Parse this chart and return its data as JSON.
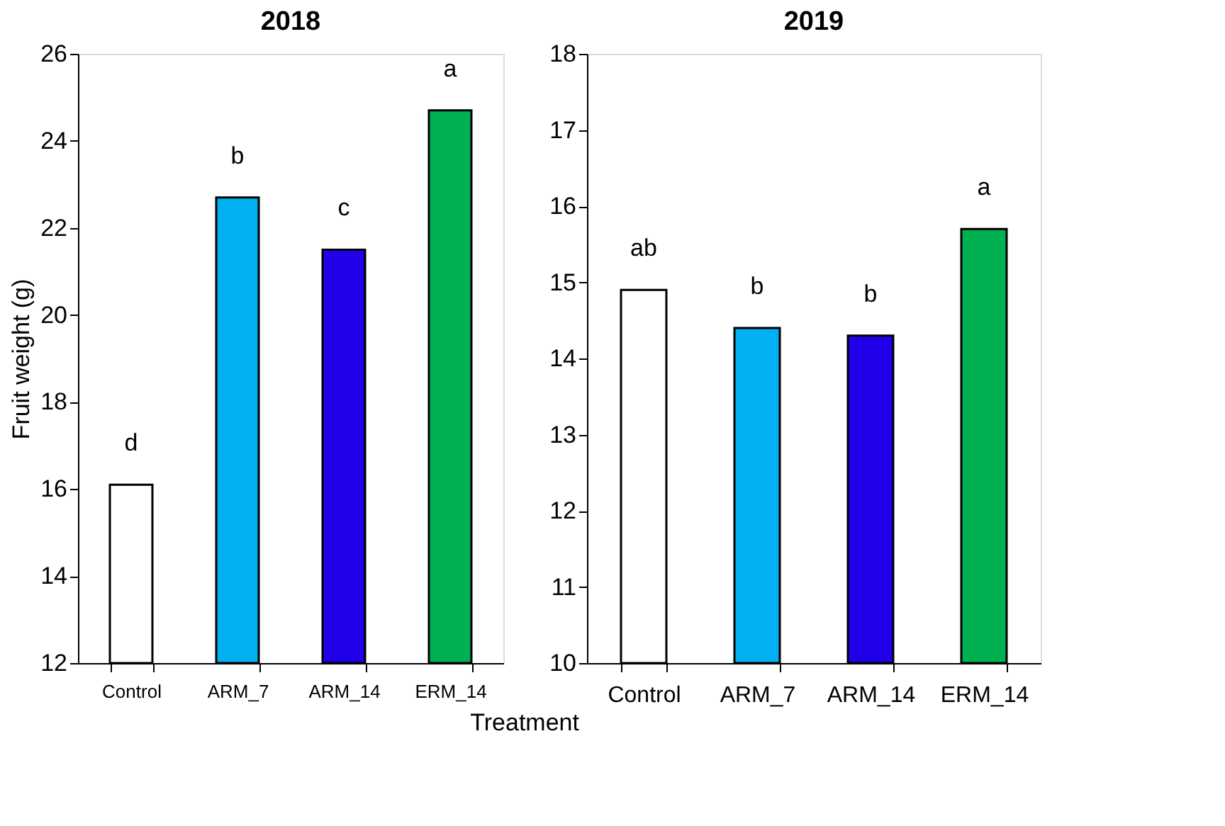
{
  "chart_data": [
    {
      "type": "bar",
      "title": "2018",
      "ylabel": "Fruit weight (g)",
      "categories": [
        "Control",
        "ARM_7",
        "ARM_14",
        "ERM_14"
      ],
      "values": [
        16.1,
        22.7,
        21.5,
        24.7
      ],
      "colors": [
        "#ffffff",
        "#00b0f0",
        "#2000e8",
        "#00b050"
      ],
      "ylim": [
        12,
        26
      ],
      "yticks": [
        12,
        14,
        16,
        18,
        20,
        22,
        24,
        26
      ],
      "annotations": [
        {
          "text": "d",
          "x": "Control",
          "y": 16.1
        },
        {
          "text": "b",
          "x": "ARM_7",
          "y": 22.7
        },
        {
          "text": "c",
          "x": "ARM_14",
          "y": 21.5
        },
        {
          "text": "a",
          "x": "ERM_14",
          "y": 24.7
        }
      ]
    },
    {
      "type": "bar",
      "title": "2019",
      "xlabel": "Treatment",
      "categories": [
        "Control",
        "ARM_7",
        "ARM_14",
        "ERM_14"
      ],
      "values": [
        14.9,
        14.4,
        14.3,
        15.7
      ],
      "colors": [
        "#ffffff",
        "#00b0f0",
        "#2000e8",
        "#00b050"
      ],
      "ylim": [
        10,
        18
      ],
      "yticks": [
        10,
        11,
        12,
        13,
        14,
        15,
        16,
        17,
        18
      ],
      "annotations": [
        {
          "text": "ab",
          "x": "Control",
          "y": 14.9
        },
        {
          "text": "b",
          "x": "ARM_7",
          "y": 14.4
        },
        {
          "text": "b",
          "x": "ARM_14",
          "y": 14.3
        },
        {
          "text": "a",
          "x": "ERM_14",
          "y": 15.7
        }
      ]
    }
  ]
}
